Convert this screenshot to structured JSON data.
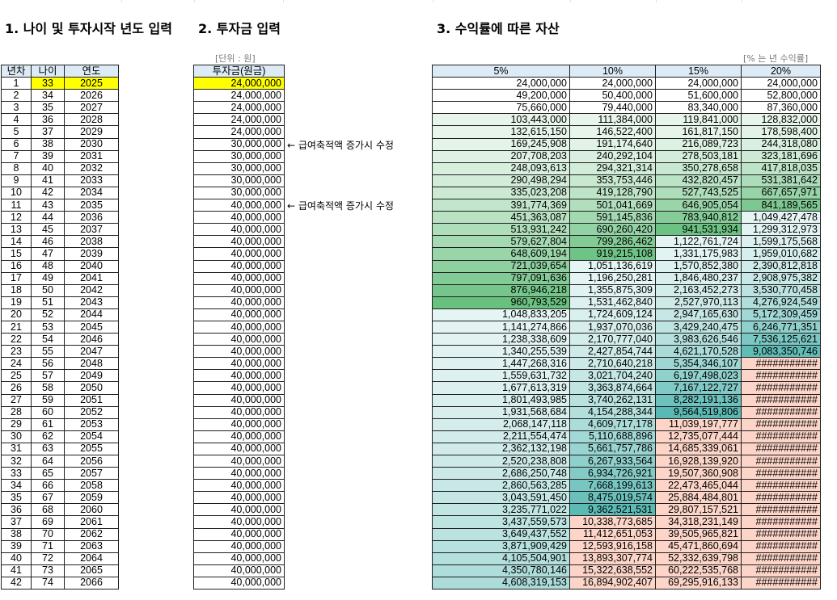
{
  "titles": {
    "left": "1. 나이 및 투자시작 년도 입력",
    "middle": "2. 투자금 입력",
    "right": "3. 수익률에 따른 자산"
  },
  "units": {
    "invest": "[단위 : 원]",
    "rate": "[% 는 년 수익률]"
  },
  "headers": {
    "year_no": "년차",
    "age": "나이",
    "year": "연도",
    "invest": "투자금(원금)",
    "rates": [
      "5%",
      "10%",
      "15%",
      "20%"
    ]
  },
  "notes": [
    "← 급여축적액 증가시 수정",
    "← 급여축적액 증가시 수정"
  ],
  "colors": {
    "input_highlight": "#ffff00",
    "header_fill": "#ddebf7",
    "green_dark": "#63be7b",
    "teal_dark": "#5ab9b4",
    "overflow_pink": "#fcd5c8"
  },
  "rows": [
    {
      "n": "1",
      "age": "33",
      "year": "2025",
      "invest": "24,000,000",
      "v": [
        "24,000,000",
        "24,000,000",
        "24,000,000",
        "24,000,000"
      ]
    },
    {
      "n": "2",
      "age": "34",
      "year": "2026",
      "invest": "24,000,000",
      "v": [
        "49,200,000",
        "50,400,000",
        "51,600,000",
        "52,800,000"
      ]
    },
    {
      "n": "3",
      "age": "35",
      "year": "2027",
      "invest": "24,000,000",
      "v": [
        "75,660,000",
        "79,440,000",
        "83,340,000",
        "87,360,000"
      ]
    },
    {
      "n": "4",
      "age": "36",
      "year": "2028",
      "invest": "24,000,000",
      "v": [
        "103,443,000",
        "111,384,000",
        "119,841,000",
        "128,832,000"
      ]
    },
    {
      "n": "5",
      "age": "37",
      "year": "2029",
      "invest": "24,000,000",
      "v": [
        "132,615,150",
        "146,522,400",
        "161,817,150",
        "178,598,400"
      ]
    },
    {
      "n": "6",
      "age": "38",
      "year": "2030",
      "invest": "30,000,000",
      "v": [
        "169,245,908",
        "191,174,640",
        "216,089,723",
        "244,318,080"
      ]
    },
    {
      "n": "7",
      "age": "39",
      "year": "2031",
      "invest": "30,000,000",
      "v": [
        "207,708,203",
        "240,292,104",
        "278,503,181",
        "323,181,696"
      ]
    },
    {
      "n": "8",
      "age": "40",
      "year": "2032",
      "invest": "30,000,000",
      "v": [
        "248,093,613",
        "294,321,314",
        "350,278,658",
        "417,818,035"
      ]
    },
    {
      "n": "9",
      "age": "41",
      "year": "2033",
      "invest": "30,000,000",
      "v": [
        "290,498,294",
        "353,753,446",
        "432,820,457",
        "531,381,642"
      ]
    },
    {
      "n": "10",
      "age": "42",
      "year": "2034",
      "invest": "30,000,000",
      "v": [
        "335,023,208",
        "419,128,790",
        "527,743,525",
        "667,657,971"
      ]
    },
    {
      "n": "11",
      "age": "43",
      "year": "2035",
      "invest": "40,000,000",
      "v": [
        "391,774,369",
        "501,041,669",
        "646,905,054",
        "841,189,565"
      ]
    },
    {
      "n": "12",
      "age": "44",
      "year": "2036",
      "invest": "40,000,000",
      "v": [
        "451,363,087",
        "591,145,836",
        "783,940,812",
        "1,049,427,478"
      ]
    },
    {
      "n": "13",
      "age": "45",
      "year": "2037",
      "invest": "40,000,000",
      "v": [
        "513,931,242",
        "690,260,420",
        "941,531,934",
        "1,299,312,973"
      ]
    },
    {
      "n": "14",
      "age": "46",
      "year": "2038",
      "invest": "40,000,000",
      "v": [
        "579,627,804",
        "799,286,462",
        "1,122,761,724",
        "1,599,175,568"
      ]
    },
    {
      "n": "15",
      "age": "47",
      "year": "2039",
      "invest": "40,000,000",
      "v": [
        "648,609,194",
        "919,215,108",
        "1,331,175,983",
        "1,959,010,682"
      ]
    },
    {
      "n": "16",
      "age": "48",
      "year": "2040",
      "invest": "40,000,000",
      "v": [
        "721,039,654",
        "1,051,136,619",
        "1,570,852,380",
        "2,390,812,818"
      ]
    },
    {
      "n": "17",
      "age": "49",
      "year": "2041",
      "invest": "40,000,000",
      "v": [
        "797,091,636",
        "1,196,250,281",
        "1,846,480,237",
        "2,908,975,382"
      ]
    },
    {
      "n": "18",
      "age": "50",
      "year": "2042",
      "invest": "40,000,000",
      "v": [
        "876,946,218",
        "1,355,875,309",
        "2,163,452,273",
        "3,530,770,458"
      ]
    },
    {
      "n": "19",
      "age": "51",
      "year": "2043",
      "invest": "40,000,000",
      "v": [
        "960,793,529",
        "1,531,462,840",
        "2,527,970,113",
        "4,276,924,549"
      ]
    },
    {
      "n": "20",
      "age": "52",
      "year": "2044",
      "invest": "40,000,000",
      "v": [
        "1,048,833,205",
        "1,724,609,124",
        "2,947,165,630",
        "5,172,309,459"
      ]
    },
    {
      "n": "21",
      "age": "53",
      "year": "2045",
      "invest": "40,000,000",
      "v": [
        "1,141,274,866",
        "1,937,070,036",
        "3,429,240,475",
        "6,246,771,351"
      ]
    },
    {
      "n": "22",
      "age": "54",
      "year": "2046",
      "invest": "40,000,000",
      "v": [
        "1,238,338,609",
        "2,170,777,040",
        "3,983,626,546",
        "7,536,125,621"
      ]
    },
    {
      "n": "23",
      "age": "55",
      "year": "2047",
      "invest": "40,000,000",
      "v": [
        "1,340,255,539",
        "2,427,854,744",
        "4,621,170,528",
        "9,083,350,746"
      ]
    },
    {
      "n": "24",
      "age": "56",
      "year": "2048",
      "invest": "40,000,000",
      "v": [
        "1,447,268,316",
        "2,710,640,218",
        "5,354,346,107",
        "###########"
      ]
    },
    {
      "n": "25",
      "age": "57",
      "year": "2049",
      "invest": "40,000,000",
      "v": [
        "1,559,631,732",
        "3,021,704,240",
        "6,197,498,023",
        "###########"
      ]
    },
    {
      "n": "26",
      "age": "58",
      "year": "2050",
      "invest": "40,000,000",
      "v": [
        "1,677,613,319",
        "3,363,874,664",
        "7,167,122,727",
        "###########"
      ]
    },
    {
      "n": "27",
      "age": "59",
      "year": "2051",
      "invest": "40,000,000",
      "v": [
        "1,801,493,985",
        "3,740,262,131",
        "8,282,191,136",
        "###########"
      ]
    },
    {
      "n": "28",
      "age": "60",
      "year": "2052",
      "invest": "40,000,000",
      "v": [
        "1,931,568,684",
        "4,154,288,344",
        "9,564,519,806",
        "###########"
      ]
    },
    {
      "n": "29",
      "age": "61",
      "year": "2053",
      "invest": "40,000,000",
      "v": [
        "2,068,147,118",
        "4,609,717,178",
        "11,039,197,777",
        "###########"
      ]
    },
    {
      "n": "30",
      "age": "62",
      "year": "2054",
      "invest": "40,000,000",
      "v": [
        "2,211,554,474",
        "5,110,688,896",
        "12,735,077,444",
        "###########"
      ]
    },
    {
      "n": "31",
      "age": "63",
      "year": "2055",
      "invest": "40,000,000",
      "v": [
        "2,362,132,198",
        "5,661,757,786",
        "14,685,339,061",
        "###########"
      ]
    },
    {
      "n": "32",
      "age": "64",
      "year": "2056",
      "invest": "40,000,000",
      "v": [
        "2,520,238,808",
        "6,267,933,564",
        "16,928,139,920",
        "###########"
      ]
    },
    {
      "n": "33",
      "age": "65",
      "year": "2057",
      "invest": "40,000,000",
      "v": [
        "2,686,250,748",
        "6,934,726,921",
        "19,507,360,908",
        "###########"
      ]
    },
    {
      "n": "34",
      "age": "66",
      "year": "2058",
      "invest": "40,000,000",
      "v": [
        "2,860,563,285",
        "7,668,199,613",
        "22,473,465,044",
        "###########"
      ]
    },
    {
      "n": "35",
      "age": "67",
      "year": "2059",
      "invest": "40,000,000",
      "v": [
        "3,043,591,450",
        "8,475,019,574",
        "25,884,484,801",
        "###########"
      ]
    },
    {
      "n": "36",
      "age": "68",
      "year": "2060",
      "invest": "40,000,000",
      "v": [
        "3,235,771,022",
        "9,362,521,531",
        "29,807,157,521",
        "###########"
      ]
    },
    {
      "n": "37",
      "age": "69",
      "year": "2061",
      "invest": "40,000,000",
      "v": [
        "3,437,559,573",
        "10,338,773,685",
        "34,318,231,149",
        "###########"
      ]
    },
    {
      "n": "38",
      "age": "70",
      "year": "2062",
      "invest": "40,000,000",
      "v": [
        "3,649,437,552",
        "11,412,651,053",
        "39,505,965,821",
        "###########"
      ]
    },
    {
      "n": "39",
      "age": "71",
      "year": "2063",
      "invest": "40,000,000",
      "v": [
        "3,871,909,429",
        "12,593,916,158",
        "45,471,860,694",
        "###########"
      ]
    },
    {
      "n": "40",
      "age": "72",
      "year": "2064",
      "invest": "40,000,000",
      "v": [
        "4,105,504,901",
        "13,893,307,774",
        "52,332,639,798",
        "###########"
      ]
    },
    {
      "n": "41",
      "age": "73",
      "year": "2065",
      "invest": "40,000,000",
      "v": [
        "4,350,780,146",
        "15,322,638,552",
        "60,222,535,768",
        "###########"
      ]
    },
    {
      "n": "42",
      "age": "74",
      "year": "2066",
      "invest": "40,000,000",
      "v": [
        "4,608,319,153",
        "16,894,902,407",
        "69,295,916,133",
        "###########"
      ]
    }
  ]
}
